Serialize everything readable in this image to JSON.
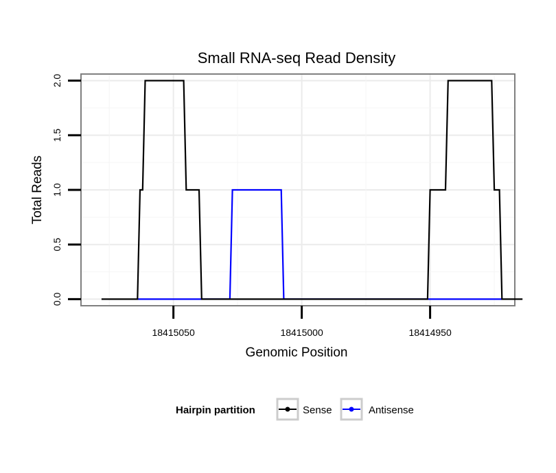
{
  "chart_data": {
    "type": "line",
    "title": "Small RNA-seq Read Density",
    "xlabel": "Genomic Position",
    "ylabel": "Total Reads",
    "x_reversed": true,
    "xlim": [
      18415086,
      18414917
    ],
    "ylim": [
      -0.06,
      2.06
    ],
    "x_ticks": [
      18415050,
      18415000,
      18414950
    ],
    "x_tick_labels": [
      "18415050",
      "18415000",
      "18414950"
    ],
    "y_ticks": [
      0.0,
      0.5,
      1.0,
      1.5,
      2.0
    ],
    "y_tick_labels": [
      "0.0",
      "0.5",
      "1.0",
      "1.5",
      "2.0"
    ],
    "grid": true,
    "legend": {
      "title": "Hairpin partition",
      "position": "bottom"
    },
    "series": [
      {
        "name": "Sense",
        "color": "#000000",
        "x": [
          18415078,
          18415064,
          18415063,
          18415062,
          18415061,
          18415046,
          18415045,
          18415040,
          18415039,
          18414951,
          18414950,
          18414944,
          18414943,
          18414926,
          18414925,
          18414923,
          18414922,
          18414914
        ],
        "y": [
          0,
          0,
          1,
          1,
          2,
          2,
          1,
          1,
          0,
          0,
          1,
          1,
          2,
          2,
          1,
          1,
          0,
          0
        ]
      },
      {
        "name": "Antisense",
        "color": "#0000ff",
        "x": [
          18415064,
          18415028,
          18415027,
          18415008,
          18415007,
          18414951,
          18414950,
          18414922
        ],
        "y": [
          0,
          0,
          1,
          1,
          0,
          0,
          0,
          0
        ]
      }
    ]
  }
}
